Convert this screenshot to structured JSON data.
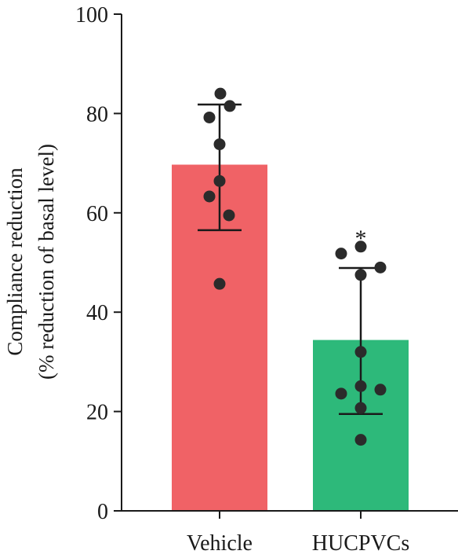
{
  "chart_data": {
    "type": "bar",
    "title": "",
    "xlabel": "",
    "ylabel_lines": [
      "Compliance reduction",
      "(% reduction of basal level)"
    ],
    "ylim": [
      0,
      100
    ],
    "yticks": [
      0,
      20,
      40,
      60,
      80,
      100
    ],
    "ytick_labels": [
      "0",
      "20",
      "40",
      "60",
      "80",
      "100"
    ],
    "grid": false,
    "categories": [
      "Vehicle",
      "HUCPVCs"
    ],
    "values": [
      69.7,
      34.4
    ],
    "error_low": [
      56.5,
      19.5
    ],
    "error_high": [
      81.8,
      48.9
    ],
    "colors": [
      "#f06266",
      "#2db97a"
    ],
    "points": [
      [
        84.0,
        81.5,
        79.2,
        73.8,
        66.4,
        63.3,
        59.5,
        45.7
      ],
      [
        53.2,
        51.8,
        49.0,
        47.5,
        32.0,
        25.1,
        24.4,
        23.6,
        20.7,
        14.3
      ]
    ],
    "annotations": [
      "",
      "*"
    ]
  }
}
